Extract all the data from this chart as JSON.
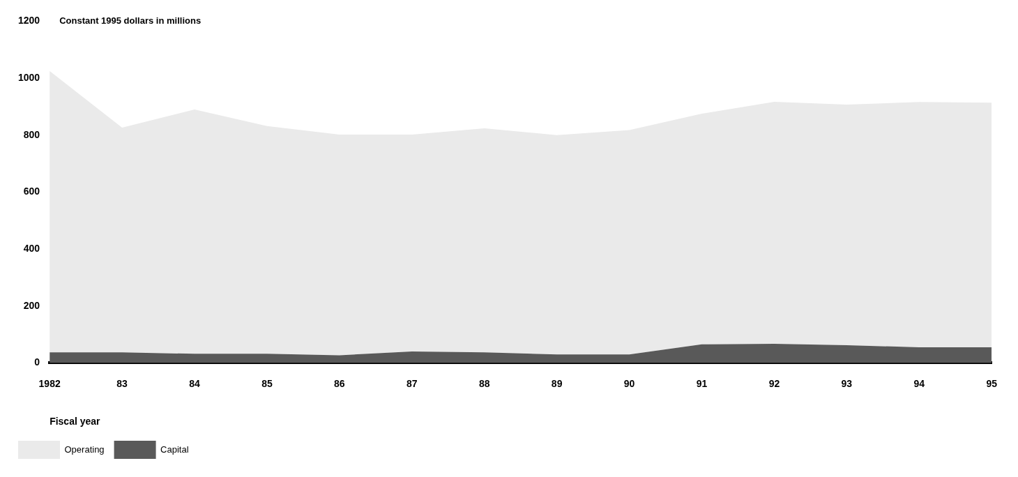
{
  "chart_data": {
    "type": "area",
    "ylabel": "Constant 1995 dollars in millions",
    "xlabel": "Fiscal year",
    "categories": [
      "1982",
      "83",
      "84",
      "85",
      "86",
      "87",
      "88",
      "89",
      "90",
      "91",
      "92",
      "93",
      "94",
      "95"
    ],
    "stacked": true,
    "series": [
      {
        "name": "Capital",
        "color": "#595959",
        "values": [
          37,
          37,
          32,
          32,
          27,
          40,
          37,
          30,
          30,
          65,
          67,
          62,
          55,
          55
        ]
      },
      {
        "name": "Operating",
        "color": "#eaeaea",
        "values": [
          988,
          789,
          858,
          800,
          775,
          762,
          787,
          770,
          788,
          810,
          850,
          845,
          861,
          859
        ]
      }
    ],
    "ylim": [
      0,
      1200
    ],
    "yticks": [
      0,
      200,
      400,
      600,
      800,
      1000,
      1200
    ],
    "grid": false,
    "legend": "bottom left"
  }
}
